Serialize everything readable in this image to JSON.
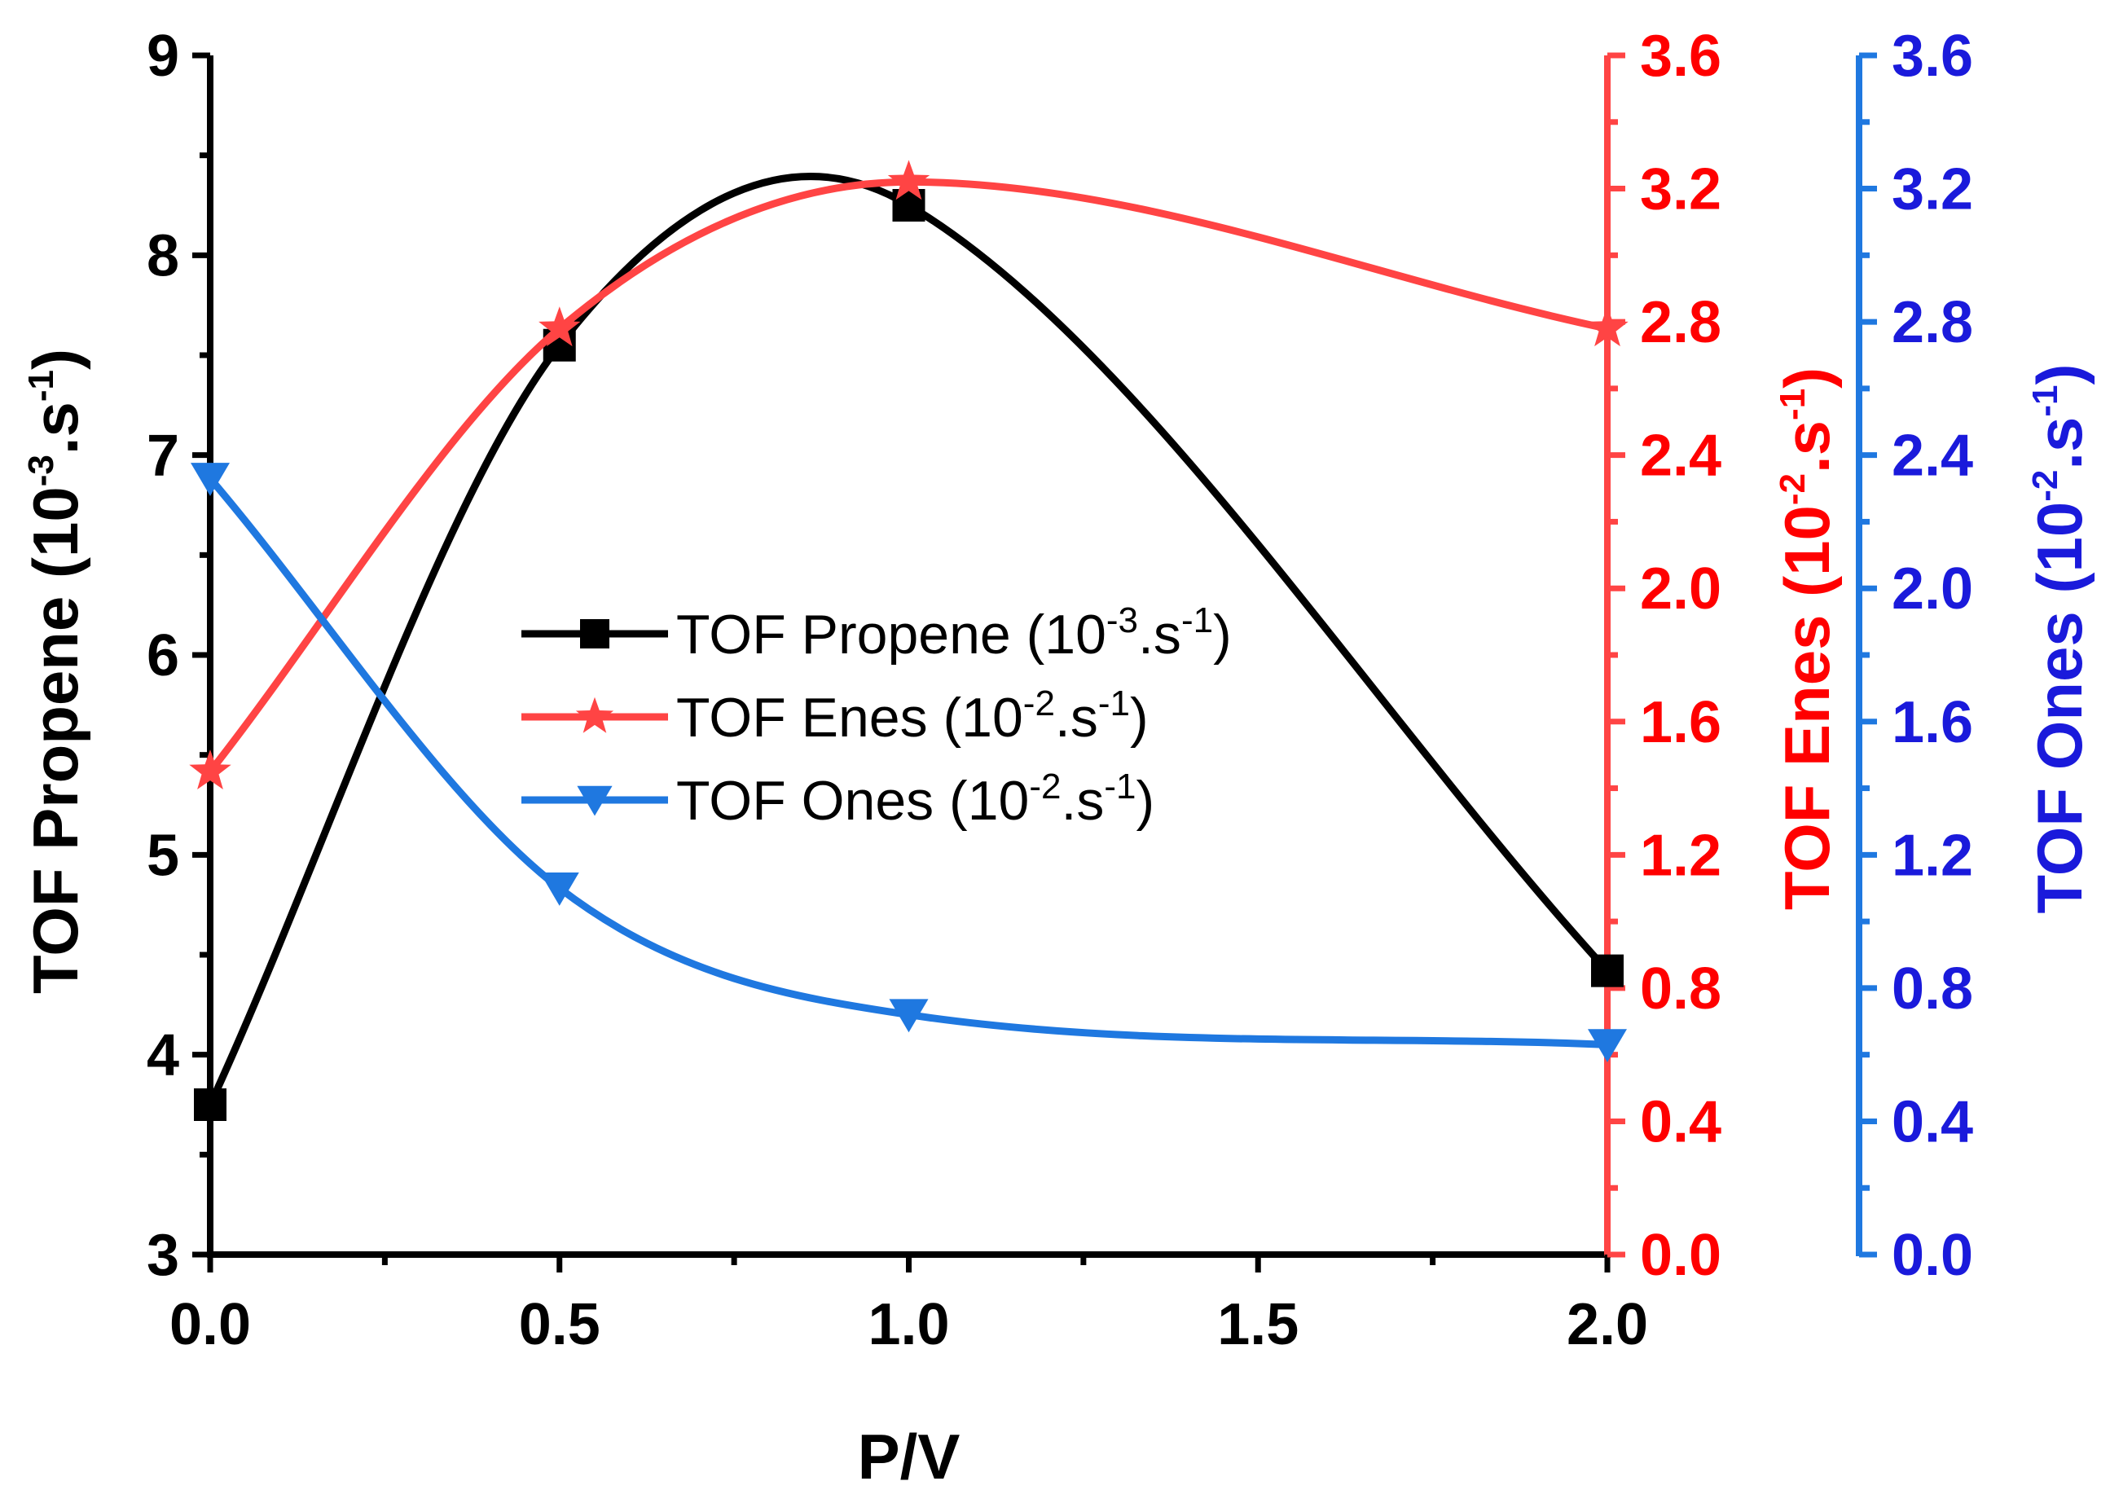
{
  "chart_data": {
    "type": "line",
    "x": [
      0.0,
      0.5,
      1.0,
      2.0
    ],
    "xlabel": "P/V",
    "xlim": [
      0.0,
      2.0
    ],
    "xticks": [
      "0.0",
      "0.5",
      "1.0",
      "1.5",
      "2.0"
    ],
    "axes": {
      "left": {
        "min": 3,
        "max": 9,
        "ticks": [
          "3",
          "4",
          "5",
          "6",
          "7",
          "8",
          "9"
        ],
        "title": "TOF Propene",
        "unit_base": "(10",
        "unit_exp": "-3",
        "unit_mid": ".s",
        "unit_exp2": "-1",
        "unit_end": ")",
        "color": "#000000"
      },
      "right1": {
        "min": 0.0,
        "max": 3.6,
        "ticks": [
          "0.0",
          "0.4",
          "0.8",
          "1.2",
          "1.6",
          "2.0",
          "2.4",
          "2.8",
          "3.2",
          "3.6"
        ],
        "title": "TOF Enes",
        "unit_base": "(10",
        "unit_exp": "-2",
        "unit_mid": ".s",
        "unit_exp2": "-1",
        "unit_end": ")",
        "color": "#ff0000",
        "line_color": "#ff4444"
      },
      "right2": {
        "min": 0.0,
        "max": 3.6,
        "ticks": [
          "0.0",
          "0.4",
          "0.8",
          "1.2",
          "1.6",
          "2.0",
          "2.4",
          "2.8",
          "3.2",
          "3.6"
        ],
        "title": "TOF Ones",
        "unit_base": "(10",
        "unit_exp": "-2",
        "unit_mid": ".s",
        "unit_exp2": "-1",
        "unit_end": ")",
        "color": "#1a1adb",
        "line_color": "#1f78e0"
      }
    },
    "series": [
      {
        "name": "TOF Propene",
        "unit_base": " (10",
        "unit_exp": "-3",
        "unit_mid": ".s",
        "unit_exp2": "-1",
        "unit_end": ")",
        "axis": "left",
        "marker": "square",
        "color": "#000000",
        "values": [
          3.75,
          7.55,
          8.25,
          4.42
        ]
      },
      {
        "name": "TOF Enes",
        "unit_base": " (10",
        "unit_exp": "-2",
        "unit_mid": ".s",
        "unit_exp2": "-1",
        "unit_end": ")",
        "axis": "right1",
        "marker": "star",
        "color": "#ff4444",
        "values": [
          1.45,
          2.78,
          3.22,
          2.78
        ]
      },
      {
        "name": "TOF Ones",
        "unit_base": " (10",
        "unit_exp": "-2",
        "unit_mid": ".s",
        "unit_exp2": "-1",
        "unit_end": ")",
        "axis": "right2",
        "marker": "triangle-down",
        "color": "#1f78e0",
        "values": [
          2.33,
          1.1,
          0.72,
          0.63
        ]
      }
    ],
    "legend_position": "center-left"
  }
}
